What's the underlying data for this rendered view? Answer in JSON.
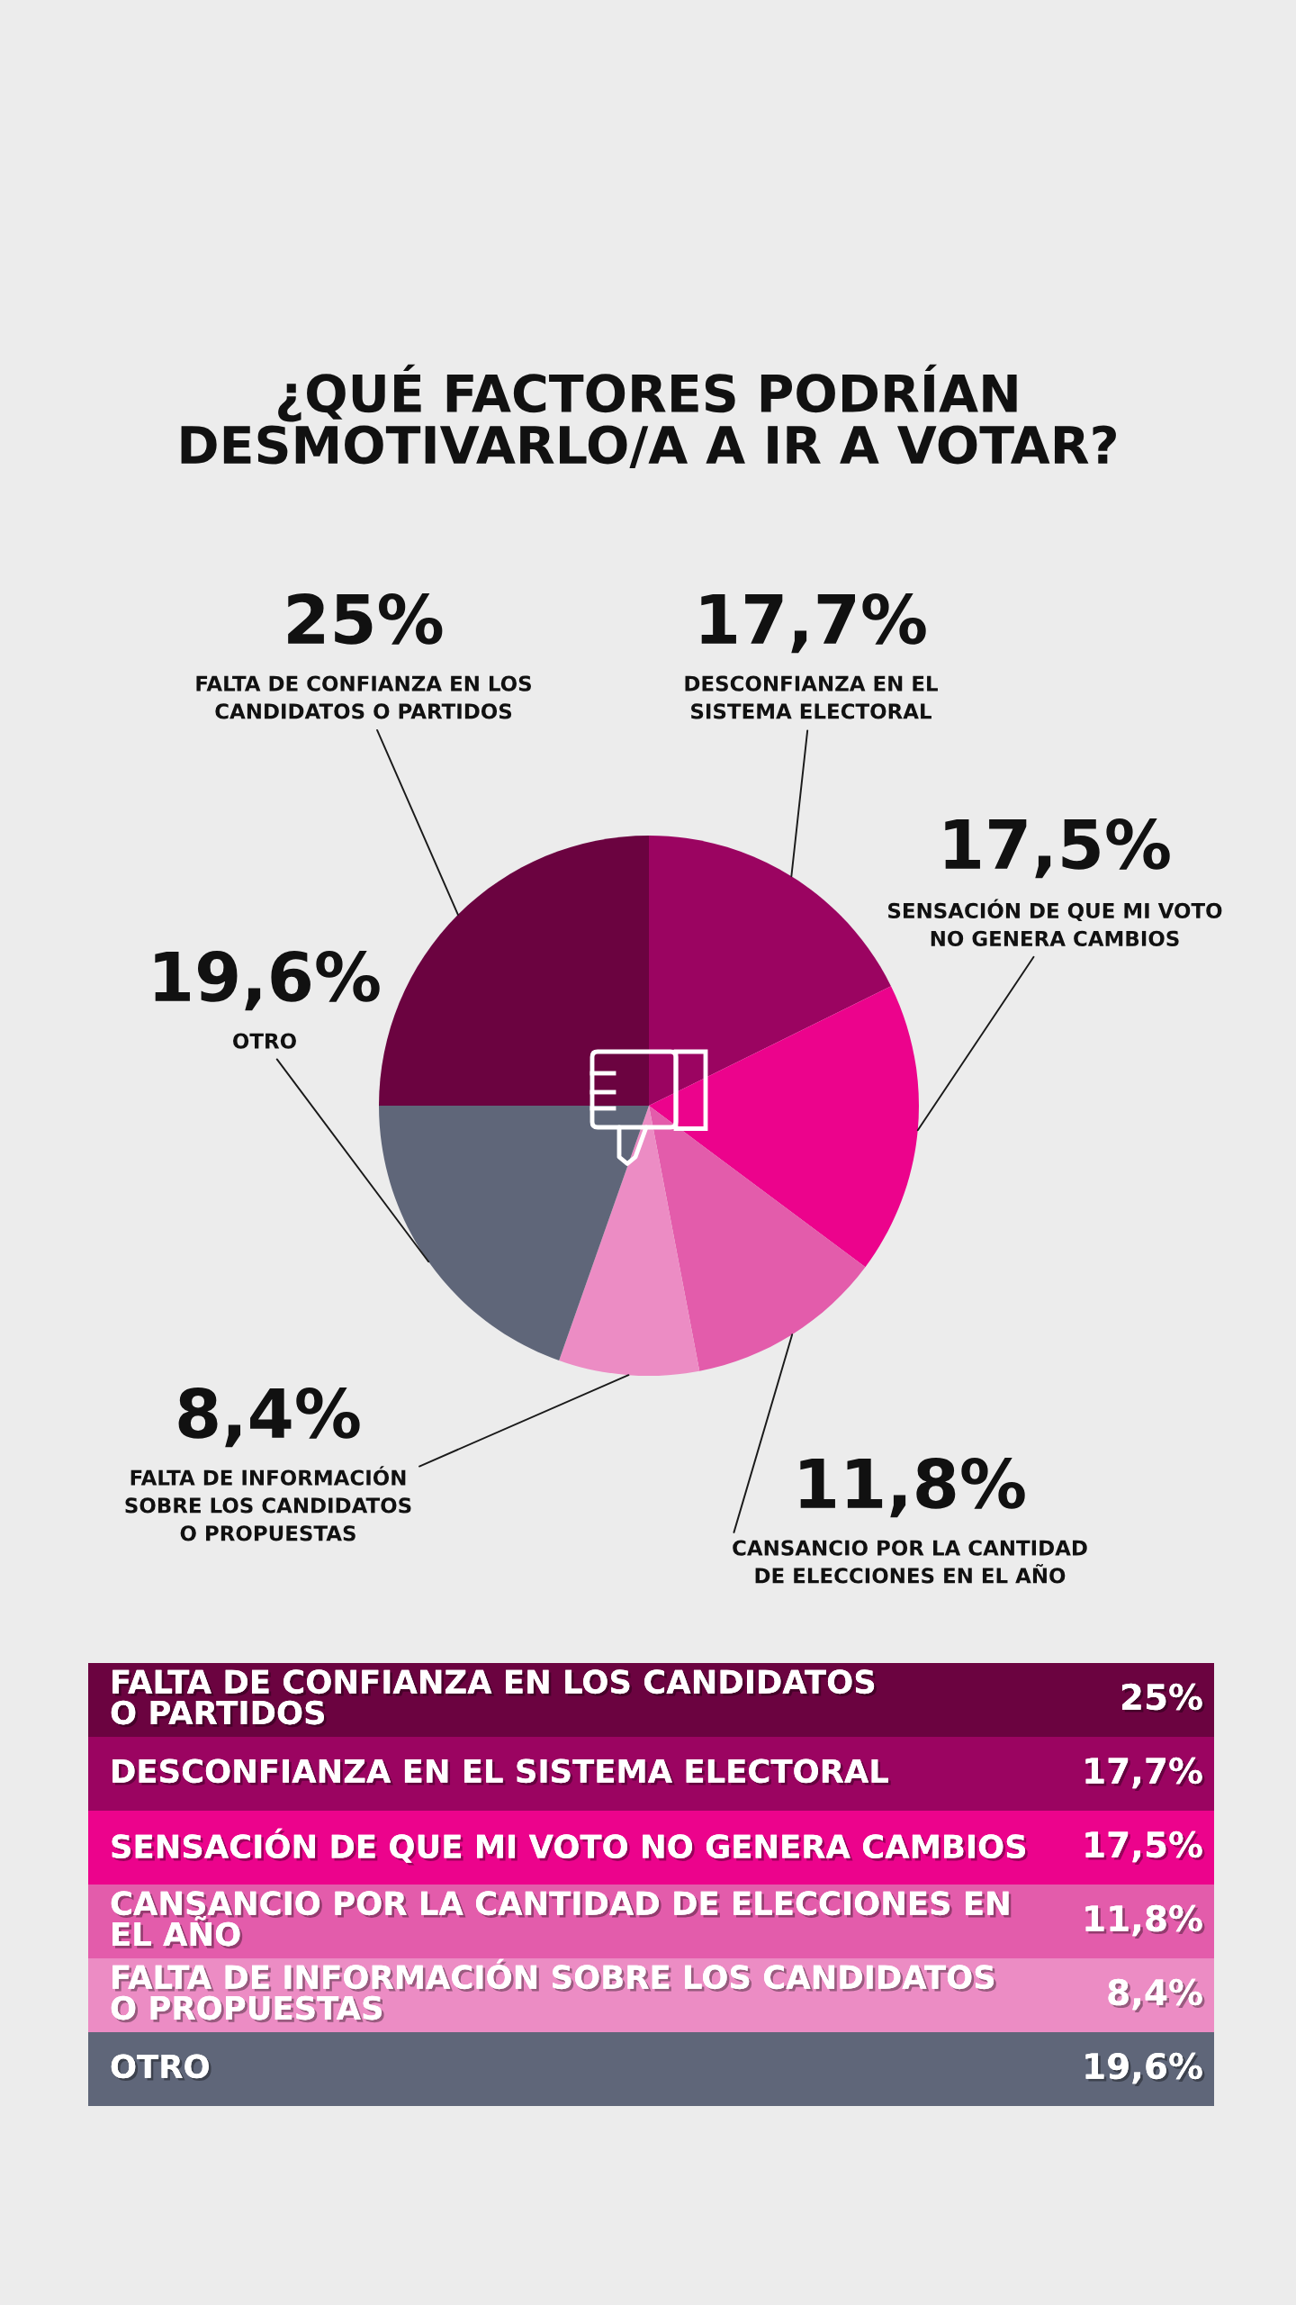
{
  "chart_data": {
    "type": "pie",
    "title": "¿QUÉ FACTORES PODRÍAN\nDESMOTIVARLO/A A IR A VOTAR?",
    "categories": [
      "FALTA DE CONFIANZA EN LOS\nCANDIDATOS O PARTIDOS",
      "DESCONFIANZA EN EL\nSISTEMA ELECTORAL",
      "SENSACIÓN DE QUE MI VOTO\nNO GENERA CAMBIOS",
      "CANSANCIO POR LA CANTIDAD\nDE ELECCIONES EN EL AÑO",
      "FALTA DE INFORMACIÓN\nSOBRE LOS CANDIDATOS\nO PROPUESTAS",
      "OTRO"
    ],
    "values": [
      25,
      17.7,
      17.5,
      11.8,
      8.4,
      19.6
    ],
    "value_labels": [
      "25%",
      "17,7%",
      "17,5%",
      "11,8%",
      "8,4%",
      "19,6%"
    ],
    "colors": [
      "#6b0340",
      "#9b0461",
      "#ec038c",
      "#e35cab",
      "#ec8cc4",
      "#5f6679"
    ]
  }
}
